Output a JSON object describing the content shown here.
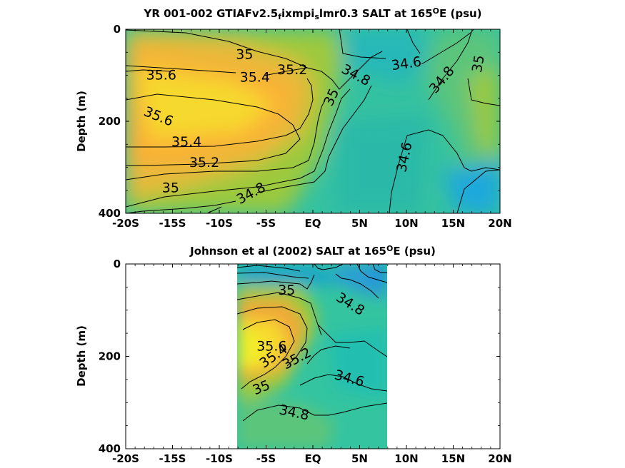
{
  "colors": {
    "axis": "#000000",
    "contour": "#000000",
    "fill_low": "#1aa7e0",
    "fill_mid": "#2fc2a2",
    "fill_midhigh": "#9cc93c",
    "fill_high": "#fbb034",
    "fill_top": "#f6df2a"
  },
  "chart_data": [
    {
      "type": "heatmap",
      "title_parts": [
        "YR 001-002 GTIAFv2.5",
        "f",
        "ixmpi",
        "s",
        "lmr0.3 SALT at 165",
        "O",
        "E (psu)"
      ],
      "title_styles": [
        "n",
        "sub",
        "n",
        "sub",
        "n",
        "sup",
        "n"
      ],
      "xlabel": "",
      "ylabel": "Depth (m)",
      "x_ticks": [
        -20,
        -15,
        -10,
        -5,
        0,
        5,
        10,
        15,
        20
      ],
      "x_tick_labels": [
        "-20S",
        "-15S",
        "-10S",
        "-5S",
        "EQ",
        "5N",
        "10N",
        "15N",
        "20N"
      ],
      "y_ticks": [
        0,
        200,
        400
      ],
      "y_tick_labels": [
        "0",
        "200",
        "400"
      ],
      "xlim": [
        -20,
        20
      ],
      "ylim": [
        0,
        400
      ],
      "y_reversed": true,
      "data_extent": [
        -20,
        20
      ],
      "contour_labels": [
        {
          "text": "35",
          "x": -7.3,
          "y": 55,
          "rot": 0
        },
        {
          "text": "35.6",
          "x": -16.2,
          "y": 100,
          "rot": 0
        },
        {
          "text": "35.4",
          "x": -6.2,
          "y": 105,
          "rot": 0
        },
        {
          "text": "35.2",
          "x": -2.2,
          "y": 88,
          "rot": 0
        },
        {
          "text": "34.8",
          "x": 4.6,
          "y": 100,
          "rot": 28
        },
        {
          "text": "34.6",
          "x": 10.0,
          "y": 75,
          "rot": -8
        },
        {
          "text": "34.8",
          "x": 13.8,
          "y": 110,
          "rot": -50
        },
        {
          "text": "35",
          "x": 17.7,
          "y": 75,
          "rot": -80
        },
        {
          "text": "35",
          "x": 2.0,
          "y": 148,
          "rot": -65
        },
        {
          "text": "35.6",
          "x": -16.5,
          "y": 190,
          "rot": 22
        },
        {
          "text": "35.4",
          "x": -13.5,
          "y": 245,
          "rot": 0
        },
        {
          "text": "35.2",
          "x": -11.6,
          "y": 290,
          "rot": 0
        },
        {
          "text": "35",
          "x": -15.2,
          "y": 345,
          "rot": 0
        },
        {
          "text": "34.8",
          "x": -6.6,
          "y": 357,
          "rot": -28
        },
        {
          "text": "34.6",
          "x": 9.8,
          "y": 278,
          "rot": -78
        }
      ]
    },
    {
      "type": "heatmap",
      "title_parts": [
        "Johnson et al (2002) SALT at 165",
        "O",
        "E (psu)"
      ],
      "title_styles": [
        "n",
        "sup",
        "n"
      ],
      "xlabel": "",
      "ylabel": "Depth (m)",
      "x_ticks": [
        -20,
        -15,
        -10,
        -5,
        0,
        5,
        10,
        15,
        20
      ],
      "x_tick_labels": [
        "-20S",
        "-15S",
        "-10S",
        "-5S",
        "EQ",
        "5N",
        "10N",
        "15N",
        "20N"
      ],
      "y_ticks": [
        0,
        200,
        400
      ],
      "y_tick_labels": [
        "0",
        "200",
        "400"
      ],
      "xlim": [
        -20,
        20
      ],
      "ylim": [
        0,
        400
      ],
      "y_reversed": true,
      "data_extent": [
        -8,
        8
      ],
      "contour_labels": [
        {
          "text": "35",
          "x": -2.8,
          "y": 57,
          "rot": 0
        },
        {
          "text": "34.8",
          "x": 4.0,
          "y": 87,
          "rot": 32
        },
        {
          "text": "35.6",
          "x": -4.4,
          "y": 178,
          "rot": 0
        },
        {
          "text": "35.4",
          "x": -4.2,
          "y": 200,
          "rot": -35
        },
        {
          "text": "35.2",
          "x": -1.7,
          "y": 205,
          "rot": -28
        },
        {
          "text": "34.6",
          "x": 3.9,
          "y": 248,
          "rot": 15
        },
        {
          "text": "35",
          "x": -5.5,
          "y": 268,
          "rot": -22
        },
        {
          "text": "34.8",
          "x": -2.0,
          "y": 322,
          "rot": 12
        }
      ]
    }
  ]
}
